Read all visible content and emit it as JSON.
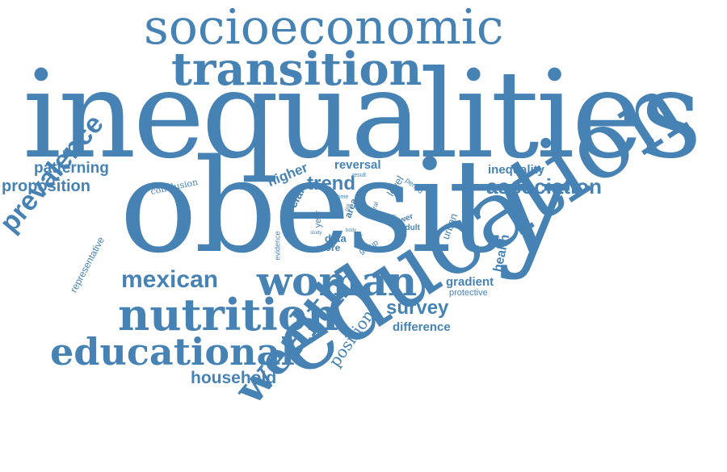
{
  "color": "#4682b4",
  "words": {
    "socioeconomic": "socioeconomic",
    "transition": "transition",
    "inequalities": "inequalities",
    "obesity": "obesity",
    "education": "education",
    "prevalence": "prevalence",
    "patterning": "patterning",
    "proposition": "proposition",
    "conclusion": "conclusion",
    "representative": "representative",
    "mexican": "mexican",
    "woman": "woman",
    "nutrition": "nutrition",
    "educational": "educational",
    "household": "household",
    "wealth": "wealth",
    "position": "position",
    "survey": "survey",
    "difference": "difference",
    "gradient": "gradient",
    "protective": "protective",
    "health": "health",
    "urban": "urban",
    "inequality": "inequality",
    "association": "association",
    "higher": "higher",
    "reversal": "reversal",
    "trend": "trend",
    "social": "social",
    "level": "level",
    "result": "result",
    "time": "time",
    "period": "period",
    "area": "area",
    "rural": "rural",
    "year": "year",
    "evidence": "evidence",
    "study": "study",
    "data": "data",
    "more": "more",
    "group": "group",
    "lower": "lower",
    "adult": "adult",
    "factor": "factor",
    "body": "body",
    "size": "size",
    "risk": "risk"
  }
}
